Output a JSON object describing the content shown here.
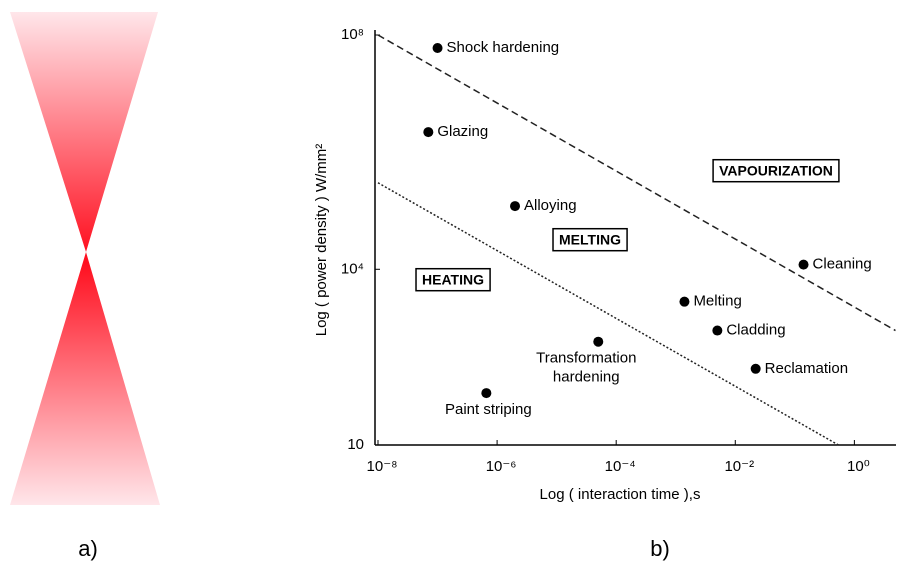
{
  "panel_labels": [
    "a)",
    "b)"
  ],
  "chart_data": {
    "type": "scatter",
    "x_label": "Log ( interaction time ),s",
    "y_label": "Log ( power density ) W/mm²",
    "x_log": true,
    "y_log": true,
    "xlim": [
      1e-08,
      5
    ],
    "ylim": [
      10,
      100000000.0
    ],
    "xticks": [
      {
        "value": 1e-08,
        "label": "10⁻⁸"
      },
      {
        "value": 1e-06,
        "label": "10⁻⁶"
      },
      {
        "value": 0.0001,
        "label": "10⁻⁴"
      },
      {
        "value": 0.01,
        "label": "10⁻²"
      },
      {
        "value": 1,
        "label": "10⁰"
      }
    ],
    "yticks": [
      10,
      {
        "value": 10000,
        "label": "10⁴"
      },
      {
        "value": 100000000,
        "label": "10⁸"
      }
    ],
    "color": "#000000",
    "labels": [
      "Shock hardening",
      "Glazing",
      "Alloying",
      "Cleaning",
      "Melting",
      "Cladding",
      [
        "Transformation",
        "hardening"
      ],
      "Reclamation",
      "Paint striping"
    ],
    "x": [
      1e-07,
      7e-08,
      2e-06,
      0.14,
      0.0014,
      0.005,
      5e-05,
      0.022,
      6.6e-07
    ],
    "values": [
      60000000.0,
      2200000.0,
      120000,
      12000,
      2800,
      900,
      580,
      200,
      77
    ],
    "boundaries": [
      {
        "style": "dashed",
        "x": [
          1e-08,
          4.9
        ],
        "y": [
          100000000.0,
          900
        ]
      },
      {
        "style": "dotted",
        "x": [
          1e-08,
          0.54
        ],
        "y": [
          300000,
          10
        ]
      }
    ],
    "annotations": [
      "VAPOURIZATION",
      "MELTING",
      "HEATING"
    ]
  }
}
